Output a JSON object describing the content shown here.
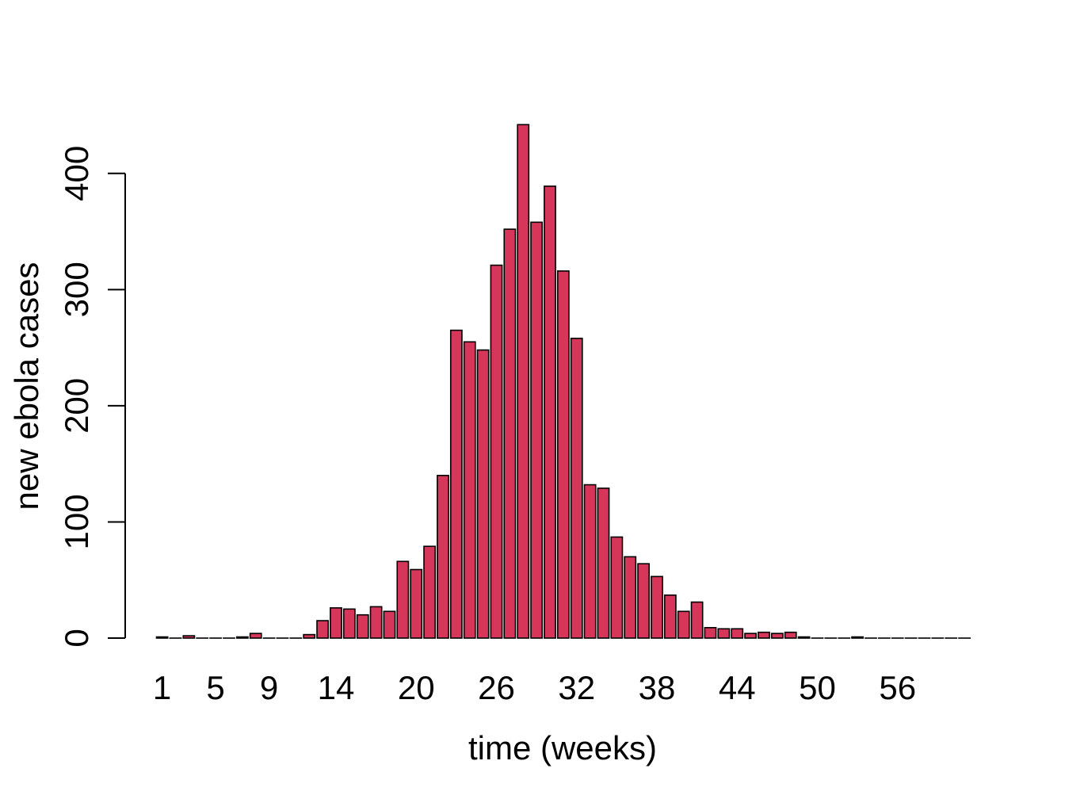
{
  "chart_data": {
    "type": "bar",
    "title": "",
    "xlabel": "time (weeks)",
    "ylabel": "new ebola cases",
    "ylim": [
      0,
      460
    ],
    "yticks": [
      0,
      100,
      200,
      300,
      400
    ],
    "xtick_labels": [
      {
        "week": 1,
        "label": "1"
      },
      {
        "week": 5,
        "label": "5"
      },
      {
        "week": 9,
        "label": "9"
      },
      {
        "week": 14,
        "label": "14"
      },
      {
        "week": 20,
        "label": "20"
      },
      {
        "week": 26,
        "label": "26"
      },
      {
        "week": 32,
        "label": "32"
      },
      {
        "week": 38,
        "label": "38"
      },
      {
        "week": 44,
        "label": "44"
      },
      {
        "week": 50,
        "label": "50"
      },
      {
        "week": 56,
        "label": "56"
      }
    ],
    "categories": [
      1,
      2,
      3,
      4,
      5,
      6,
      7,
      8,
      9,
      10,
      11,
      12,
      13,
      14,
      15,
      16,
      17,
      18,
      19,
      20,
      21,
      22,
      23,
      24,
      25,
      26,
      27,
      28,
      29,
      30,
      31,
      32,
      33,
      34,
      35,
      36,
      37,
      38,
      39,
      40,
      41,
      42,
      43,
      44,
      45,
      46,
      47,
      48,
      49,
      50,
      51,
      52,
      53,
      54,
      55,
      56,
      57,
      58,
      59,
      60,
      61
    ],
    "values": [
      1,
      0,
      2,
      0,
      0,
      0,
      1,
      4,
      0,
      0,
      0,
      3,
      15,
      26,
      25,
      20,
      27,
      23,
      66,
      59,
      79,
      140,
      265,
      255,
      248,
      321,
      352,
      442,
      358,
      389,
      316,
      258,
      132,
      129,
      87,
      70,
      64,
      53,
      37,
      23,
      31,
      9,
      8,
      8,
      4,
      5,
      4,
      5,
      1,
      0,
      0,
      0,
      1,
      0,
      0,
      0,
      0,
      0,
      0,
      0,
      0
    ],
    "bar_color": "#d6365a",
    "bar_border_color": "#000000",
    "grid": false,
    "legend": "none"
  }
}
